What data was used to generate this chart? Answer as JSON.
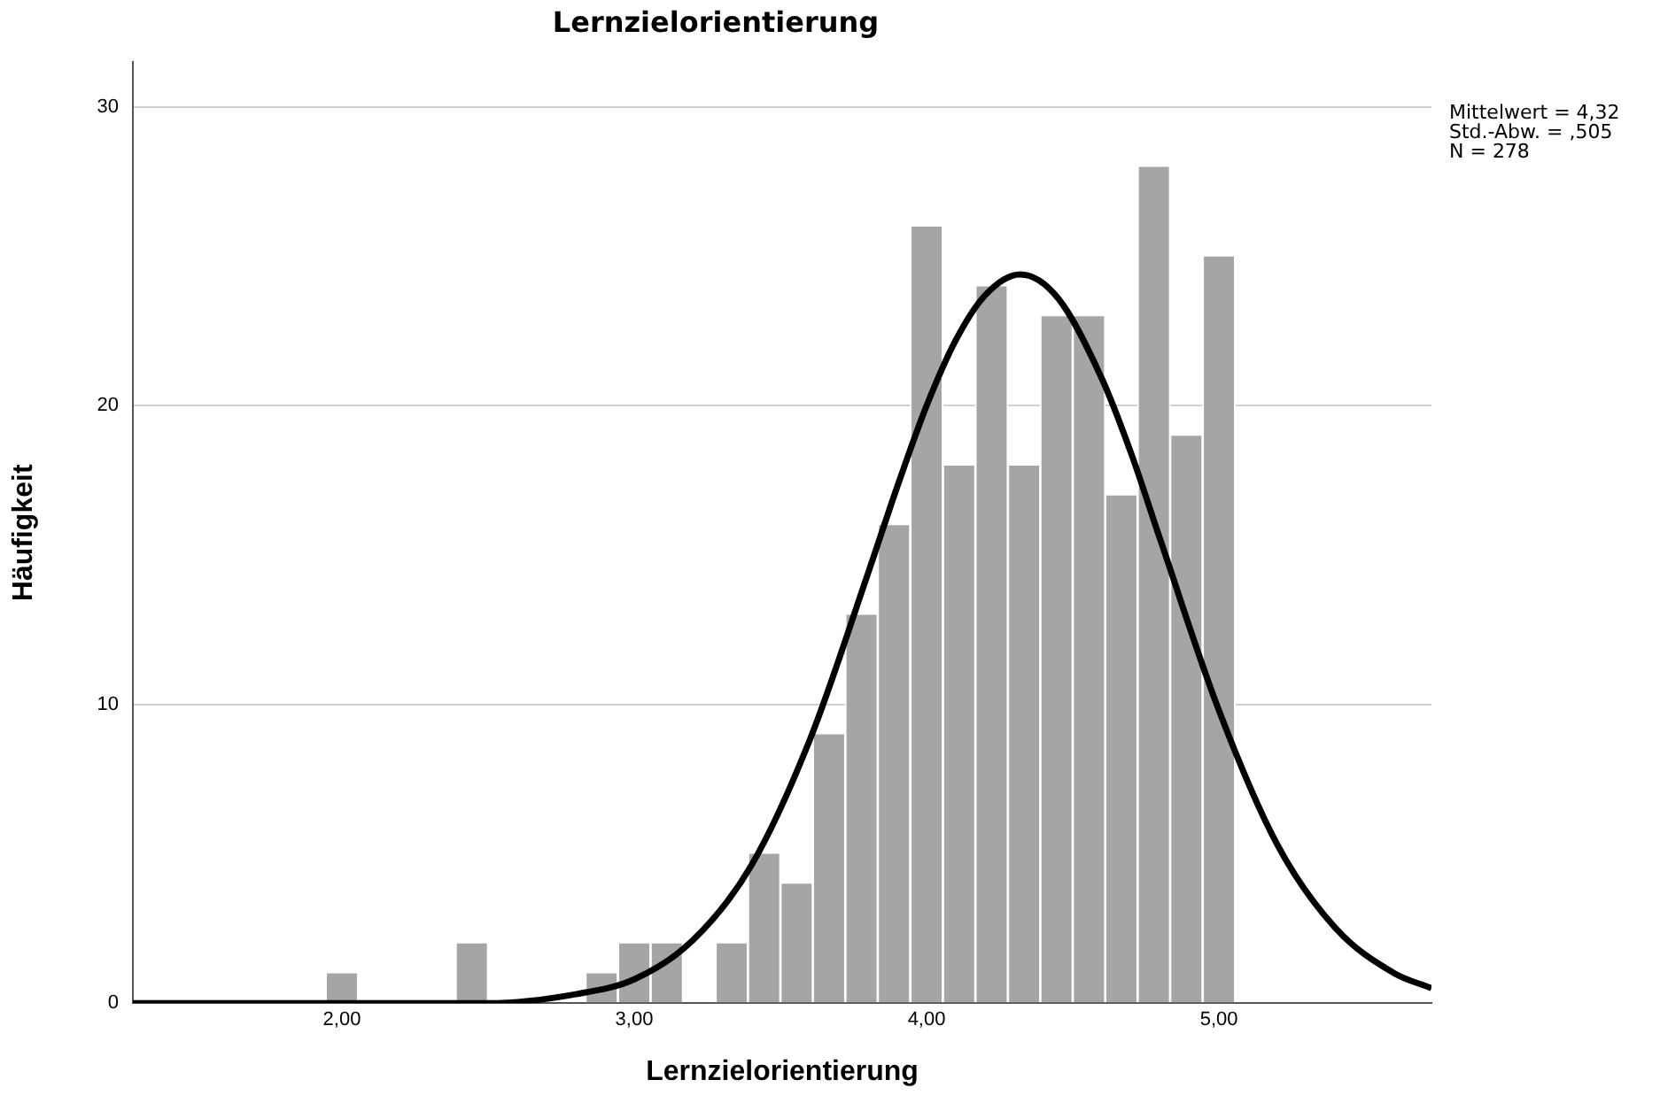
{
  "chart_data": {
    "type": "histogram",
    "title": "Lernzielorientierung",
    "xlabel": "Lernzielorientierung",
    "ylabel": "Häufigkeit",
    "bins": [
      1.944,
      2.056,
      2.167,
      2.278,
      2.389,
      2.5,
      2.611,
      2.722,
      2.833,
      2.944,
      3.056,
      3.167,
      3.278,
      3.389,
      3.5,
      3.611,
      3.722,
      3.833,
      3.944,
      4.056,
      4.167,
      4.278,
      4.389,
      4.5,
      4.611,
      4.722,
      4.833,
      4.944,
      5.056
    ],
    "values": [
      1,
      0,
      0,
      0,
      2,
      0,
      0,
      0,
      1,
      2,
      2,
      0,
      2,
      5,
      4,
      9,
      13,
      16,
      26,
      18,
      24,
      18,
      23,
      23,
      17,
      28,
      19,
      25
    ],
    "color": "#a5a5a5",
    "series": [
      {
        "type": "line",
        "color": "#000000",
        "x": [
          1.285,
          2.5,
          2.8,
          3.0,
          3.2,
          3.4,
          3.6,
          3.8,
          3.9,
          4.0,
          4.1,
          4.2,
          4.32,
          4.45,
          4.6,
          4.7,
          4.8,
          5.0,
          5.2,
          5.4,
          5.6,
          5.727
        ],
        "values": [
          0,
          0,
          0.3,
          0.8,
          2.1,
          4.6,
          8.8,
          14.4,
          17.3,
          20.0,
          22.2,
          23.7,
          24.4,
          23.6,
          20.9,
          18.4,
          15.5,
          9.8,
          5.3,
          2.5,
          1.0,
          0.5
        ]
      }
    ],
    "xlim": [
      1.285,
      5.727
    ],
    "ylim": [
      0,
      31.5
    ],
    "xticks": [
      {
        "value": 2,
        "label": "2,00"
      },
      {
        "value": 3,
        "label": "3,00"
      },
      {
        "value": 4,
        "label": "4,00"
      },
      {
        "value": 5,
        "label": "5,00"
      }
    ],
    "yticks": [
      0,
      10,
      20,
      30
    ],
    "grid": "y",
    "annotations": [
      "Mittelwert = 4,32",
      "Std.-Abw. = ,505",
      "N = 278"
    ]
  }
}
